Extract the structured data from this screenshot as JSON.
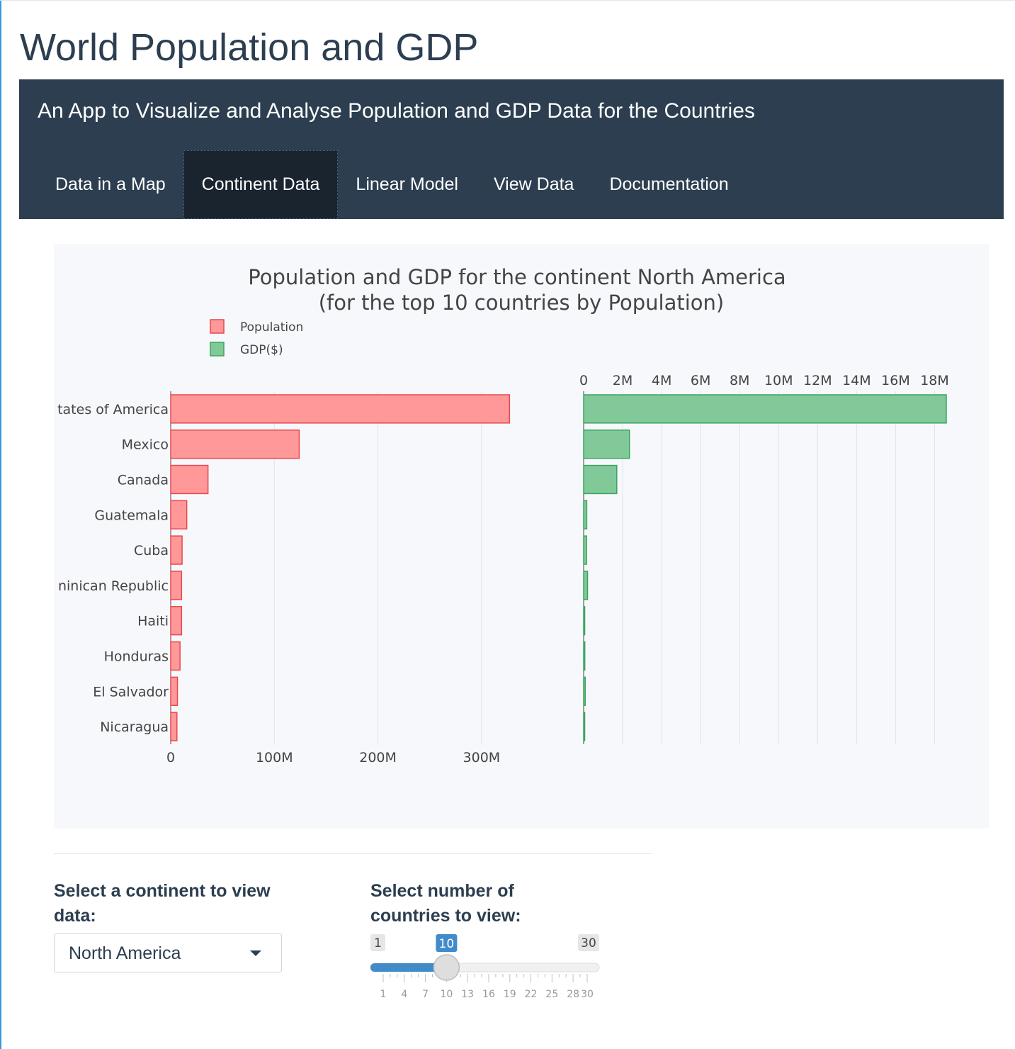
{
  "app_title": "World Population and GDP",
  "navbar": {
    "subtitle": "An App to Visualize and Analyse Population and GDP Data for the Countries",
    "tabs": [
      {
        "label": "Data in a Map",
        "active": false
      },
      {
        "label": "Continent Data",
        "active": true
      },
      {
        "label": "Linear Model",
        "active": false
      },
      {
        "label": "View Data",
        "active": false
      },
      {
        "label": "Documentation",
        "active": false
      }
    ]
  },
  "chart_data": {
    "type": "bar",
    "orientation": "horizontal",
    "title": "Population and GDP for the continent North America",
    "subtitle": "(for the top 10 countries by Population)",
    "legend": [
      {
        "name": "Population",
        "color": "#ff9999",
        "edge": "#e8474f"
      },
      {
        "name": "GDP($)",
        "color": "#82c99a",
        "edge": "#3aa45e"
      }
    ],
    "legend_placement": "top-left",
    "categories": [
      "tates of America",
      "Mexico",
      "Canada",
      "Guatemala",
      "Cuba",
      "ninican Republic",
      "Haiti",
      "Honduras",
      "El Salvador",
      "Nicaragua"
    ],
    "series": [
      {
        "name": "Population",
        "values": [
          327,
          124,
          36,
          15.5,
          11,
          10.5,
          10.5,
          9,
          6.5,
          6
        ],
        "xlim": [
          0,
          350
        ],
        "ticks": [
          0,
          100,
          200,
          300
        ],
        "tick_labels": [
          "0",
          "100M",
          "200M",
          "300M"
        ],
        "axis_position": "bottom"
      },
      {
        "name": "GDP($)",
        "values": [
          18.6,
          2.35,
          1.7,
          0.16,
          0.15,
          0.2,
          0.03,
          0.06,
          0.08,
          0.05
        ],
        "xlim": [
          0,
          18.6
        ],
        "ticks": [
          0,
          2,
          4,
          6,
          8,
          10,
          12,
          14,
          16,
          18
        ],
        "tick_labels": [
          "0",
          "2M",
          "4M",
          "6M",
          "8M",
          "10M",
          "12M",
          "14M",
          "16M",
          "18M"
        ],
        "axis_position": "top"
      }
    ],
    "grid": true
  },
  "controls": {
    "continent_label": "Select a continent to view data:",
    "continent_value": "North America",
    "countries_label": "Select number of countries to view:",
    "slider": {
      "min": 1,
      "max": 30,
      "value": 10,
      "min_label": "1",
      "max_label": "30",
      "value_label": "10",
      "tick_labels": [
        "1",
        "4",
        "7",
        "10",
        "13",
        "16",
        "19",
        "22",
        "25",
        "28",
        "30"
      ]
    }
  }
}
